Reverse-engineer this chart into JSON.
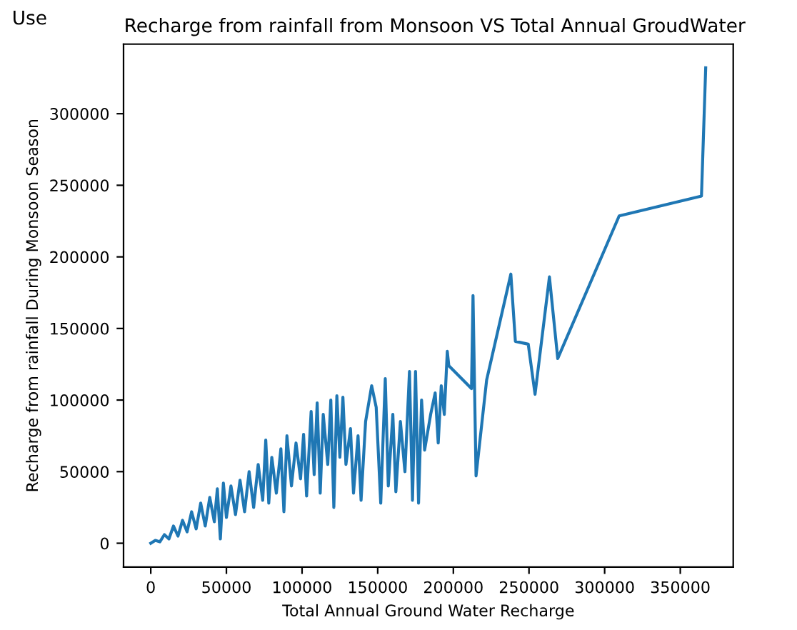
{
  "chart_data": {
    "type": "line",
    "title": "Recharge from rainfall from Monsoon VS Total Annual GroudWater",
    "annotations": [
      "Use"
    ],
    "xlabel": "Total Annual Ground Water Recharge",
    "ylabel": "Recharge from rainfall During Monsoon Season",
    "x": [
      0,
      3000,
      6000,
      9000,
      12000,
      15000,
      18000,
      21000,
      24000,
      27000,
      30000,
      33000,
      36000,
      39000,
      42000,
      44000,
      46000,
      48000,
      50000,
      53000,
      56000,
      59000,
      62000,
      65000,
      68000,
      71000,
      74000,
      76000,
      78000,
      80000,
      83000,
      86000,
      88000,
      90000,
      93000,
      96000,
      99000,
      101000,
      103000,
      106000,
      108000,
      110000,
      112000,
      114000,
      117000,
      119000,
      121000,
      123000,
      125000,
      127000,
      129000,
      132000,
      134000,
      137000,
      139000,
      142000,
      146000,
      149000,
      152000,
      155000,
      157000,
      160000,
      162000,
      165000,
      168000,
      171000,
      173000,
      175000,
      177000,
      179000,
      181000,
      185000,
      188000,
      190000,
      192000,
      194000,
      196000,
      197000,
      212000,
      213000,
      215000,
      222000,
      238000,
      241000,
      249500,
      254000,
      263500,
      269000,
      309600,
      364000,
      366800
    ],
    "series": [
      {
        "color": "#1f77b4",
        "values": [
          0,
          2000,
          1000,
          6000,
          3000,
          12000,
          5000,
          16000,
          8000,
          22000,
          10000,
          28000,
          12000,
          32000,
          15000,
          38000,
          3000,
          42000,
          18000,
          40000,
          20000,
          44000,
          22000,
          50000,
          25000,
          55000,
          30000,
          72000,
          28000,
          60000,
          35000,
          66000,
          22000,
          75000,
          40000,
          70000,
          45000,
          76000,
          33000,
          92000,
          48000,
          98000,
          35000,
          90000,
          55000,
          100000,
          25000,
          103000,
          60000,
          102000,
          55000,
          80000,
          35000,
          75000,
          30000,
          85000,
          110000,
          95000,
          28000,
          115000,
          40000,
          90000,
          36000,
          85000,
          50000,
          120000,
          30000,
          120000,
          28000,
          100000,
          65000,
          90000,
          105000,
          70000,
          110000,
          90000,
          134000,
          124000,
          108000,
          173000,
          47000,
          114000,
          188000,
          141000,
          139000,
          104000,
          186000,
          129000,
          228600,
          242500,
          332000
        ]
      }
    ],
    "xlim": [
      -18000,
      385000
    ],
    "ylim": [
      -16600,
      348600
    ],
    "xticks": [
      0,
      50000,
      100000,
      150000,
      200000,
      250000,
      300000,
      350000
    ],
    "yticks": [
      0,
      50000,
      100000,
      150000,
      200000,
      250000,
      300000
    ],
    "grid": false,
    "legend": false
  }
}
